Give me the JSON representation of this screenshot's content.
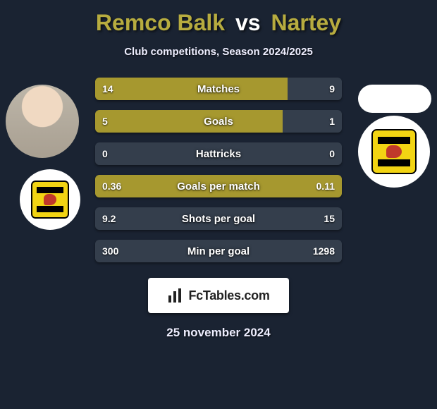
{
  "title": {
    "player1": "Remco Balk",
    "separator": "vs",
    "player2": "Nartey",
    "player1_color": "#b7ac3f",
    "player2_color": "#b7ac3f"
  },
  "subtitle": "Club competitions, Season 2024/2025",
  "background_color": "#1a2332",
  "bars": {
    "bar_fill_color": "#a6982f",
    "bar_rest_color": "#343e4c",
    "text_color": "#ffffff",
    "rows": [
      {
        "label": "Matches",
        "left": "14",
        "right": "9",
        "fill_pct": 78
      },
      {
        "label": "Goals",
        "left": "5",
        "right": "1",
        "fill_pct": 76
      },
      {
        "label": "Hattricks",
        "left": "0",
        "right": "0",
        "fill_pct": 0
      },
      {
        "label": "Goals per match",
        "left": "0.36",
        "right": "0.11",
        "fill_pct": 100
      },
      {
        "label": "Shots per goal",
        "left": "9.2",
        "right": "15",
        "fill_pct": 0
      },
      {
        "label": "Min per goal",
        "left": "300",
        "right": "1298",
        "fill_pct": 0
      }
    ]
  },
  "badges": {
    "left_player_photo": "face-placeholder",
    "right_player_shape": "ellipse-white",
    "club_logo_name": "cambuur-crest",
    "club_logo_badge_bg": "#ffffff",
    "club_logo_inner_bg": "#f2d413",
    "club_logo_bars": "#000000",
    "club_logo_accent": "#c0392b"
  },
  "watermark": {
    "text": "FcTables.com",
    "icon": "bar-chart-icon",
    "bg": "#ffffff",
    "text_color": "#222222"
  },
  "date": "25 november 2024"
}
